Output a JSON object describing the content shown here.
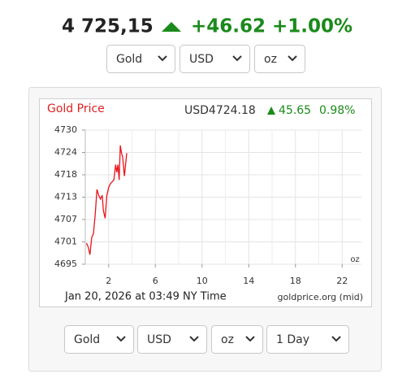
{
  "header": {
    "price": "4 725,15",
    "change": "+46.62",
    "change_pct": "+1.00%"
  },
  "top_selects": [
    "Gold",
    "USD",
    "oz"
  ],
  "chart_data": {
    "type": "line",
    "title": "Gold Price",
    "quote": "USD4724.18",
    "change": "45.65",
    "change_pct": "0.98%",
    "unit": "oz",
    "timestamp": "Jan 20, 2026 at 03:49 NY Time",
    "source": "goldprice.org (mid)",
    "x": [
      0.1,
      0.25,
      0.4,
      0.55,
      0.7,
      0.85,
      1.0,
      1.15,
      1.3,
      1.45,
      1.55,
      1.7,
      1.85,
      2.0,
      2.15,
      2.3,
      2.45,
      2.6,
      2.7,
      2.8,
      2.9,
      3.0,
      3.1,
      3.2,
      3.35,
      3.45,
      3.55
    ],
    "values": [
      4700.5,
      4699.5,
      4697.5,
      4702,
      4703,
      4708,
      4714.5,
      4713,
      4712,
      4713,
      4709,
      4707,
      4713,
      4715,
      4716,
      4716.5,
      4717,
      4721,
      4719,
      4721,
      4717,
      4726,
      4724,
      4723,
      4718,
      4721,
      4724
    ],
    "color": "#e8141b",
    "xlim": [
      0,
      24
    ],
    "ylim": [
      4695,
      4730
    ],
    "xticks": [
      2,
      6,
      10,
      14,
      18,
      22
    ],
    "xminorticks": [
      4,
      8,
      12,
      16,
      20
    ],
    "yticks": [
      4695,
      {
        "value": 4700.833,
        "label": "4701"
      },
      {
        "value": 4706.667,
        "label": "4707"
      },
      {
        "value": 4712.5,
        "label": "4713"
      },
      {
        "value": 4718.333,
        "label": "4718"
      },
      {
        "value": 4724.167,
        "label": "4724"
      },
      4730
    ],
    "grid": true
  },
  "bottom_selects": [
    "Gold",
    "USD",
    "oz",
    "1 Day"
  ]
}
